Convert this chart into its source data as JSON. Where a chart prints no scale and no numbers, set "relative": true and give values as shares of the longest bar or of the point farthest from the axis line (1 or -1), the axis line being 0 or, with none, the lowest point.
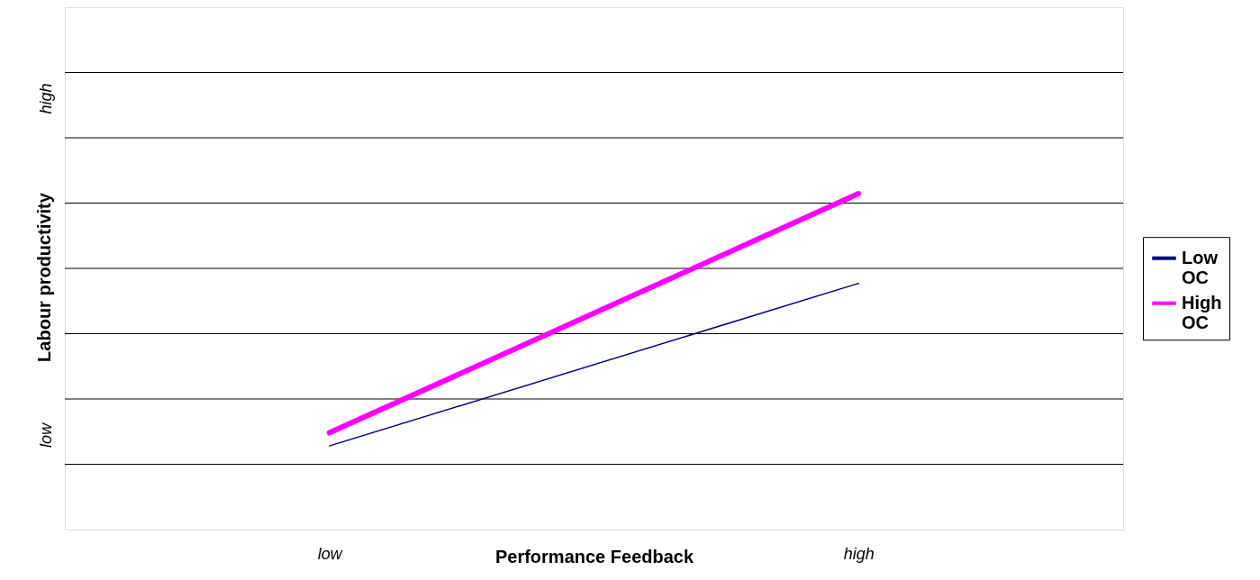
{
  "chart_data": {
    "type": "line",
    "relative": true,
    "xlabel": "Performance Feedback",
    "ylabel": "Labour productivity",
    "categories": [
      "low",
      "high"
    ],
    "series": [
      {
        "name": "Low OC",
        "color": "#000080",
        "values": [
          0.249,
          0.733
        ]
      },
      {
        "name": "High OC",
        "color": "#ff00ff",
        "values": [
          0.288,
          1
        ]
      }
    ],
    "annotations": [
      "low",
      "high"
    ],
    "grid": true,
    "legend": "right",
    "marker": "none",
    "line_style": "solid"
  }
}
